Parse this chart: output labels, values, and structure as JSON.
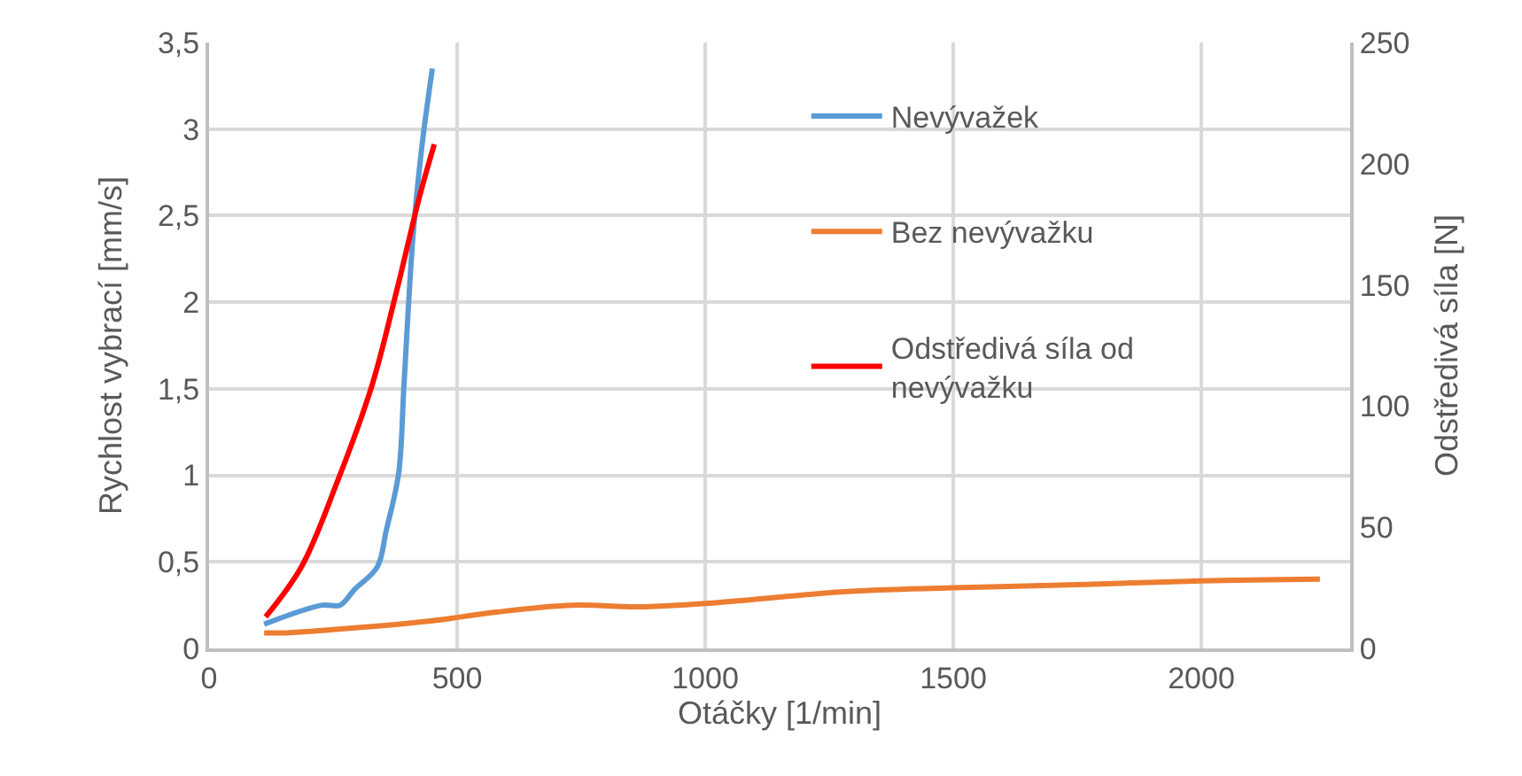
{
  "chart_data": {
    "type": "line",
    "xlabel": "Otáčky [1/min]",
    "ylabel": "Rychlost vybrací [mm/s]",
    "y2label": "Odstředivá síla [N]",
    "xlim": [
      0,
      2300
    ],
    "xticks": [
      0,
      500,
      1000,
      1500,
      2000
    ],
    "ylim": [
      0,
      3.5
    ],
    "yticks": [
      0,
      {
        "value": 0.5,
        "label": "0,5"
      },
      1,
      {
        "value": 1.5,
        "label": "1,5"
      },
      2,
      {
        "value": 2.5,
        "label": "2,5"
      },
      3,
      {
        "value": 3.5,
        "label": "3,5"
      }
    ],
    "y2lim": [
      0,
      250
    ],
    "y2ticks": [
      0,
      50,
      100,
      150,
      200,
      250
    ],
    "grid": true,
    "legend": "top right",
    "marker": "none",
    "line_style": "solid",
    "series": [
      {
        "name": "Nevývažek",
        "color": "#5b9bd5",
        "x": [
          111,
          228,
          264,
          293,
          339,
          357,
          382,
          393,
          411,
          429,
          450
        ],
        "values": [
          0.14,
          0.25,
          0.25,
          0.34,
          0.47,
          0.68,
          1.01,
          1.53,
          2.38,
          2.9,
          3.35
        ]
      },
      {
        "name": "Bez nevývažku",
        "color": "#ed7d31",
        "x": [
          111,
          157,
          300,
          450,
          579,
          732,
          864,
          1000,
          1293,
          1500,
          1768,
          2000,
          2239
        ],
        "values": [
          0.09,
          0.09,
          0.12,
          0.16,
          0.21,
          0.25,
          0.24,
          0.26,
          0.33,
          0.35,
          0.37,
          0.39,
          0.4
        ]
      },
      {
        "name": "Odstředivá síla od nevývažku",
        "color": "#ff0000",
        "axis": "y2",
        "x": [
          114,
          186,
          257,
          329,
          375,
          425,
          454
        ],
        "values": [
          13,
          33.6,
          68,
          109,
          145,
          187,
          208
        ]
      }
    ]
  }
}
